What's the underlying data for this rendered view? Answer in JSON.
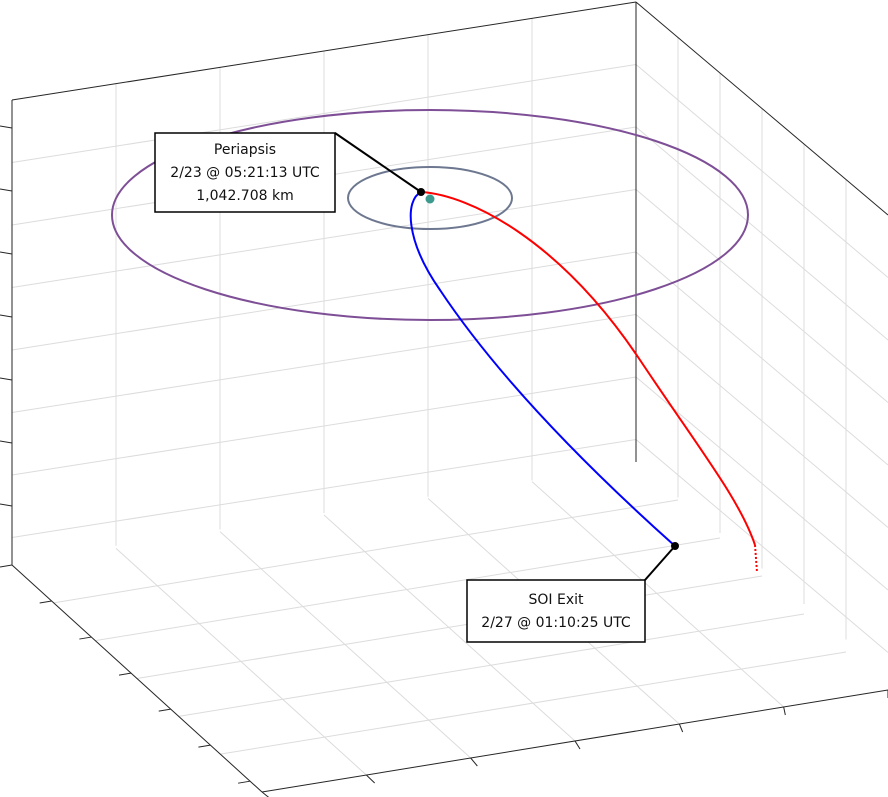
{
  "annotations": [
    {
      "lines": [
        "Periapsis",
        "2/23 @ 05:21:13 UTC",
        "1,042.708 km"
      ]
    },
    {
      "lines": [
        "SOI Exit",
        "2/27 @ 01:10:25 UTC"
      ]
    }
  ]
}
